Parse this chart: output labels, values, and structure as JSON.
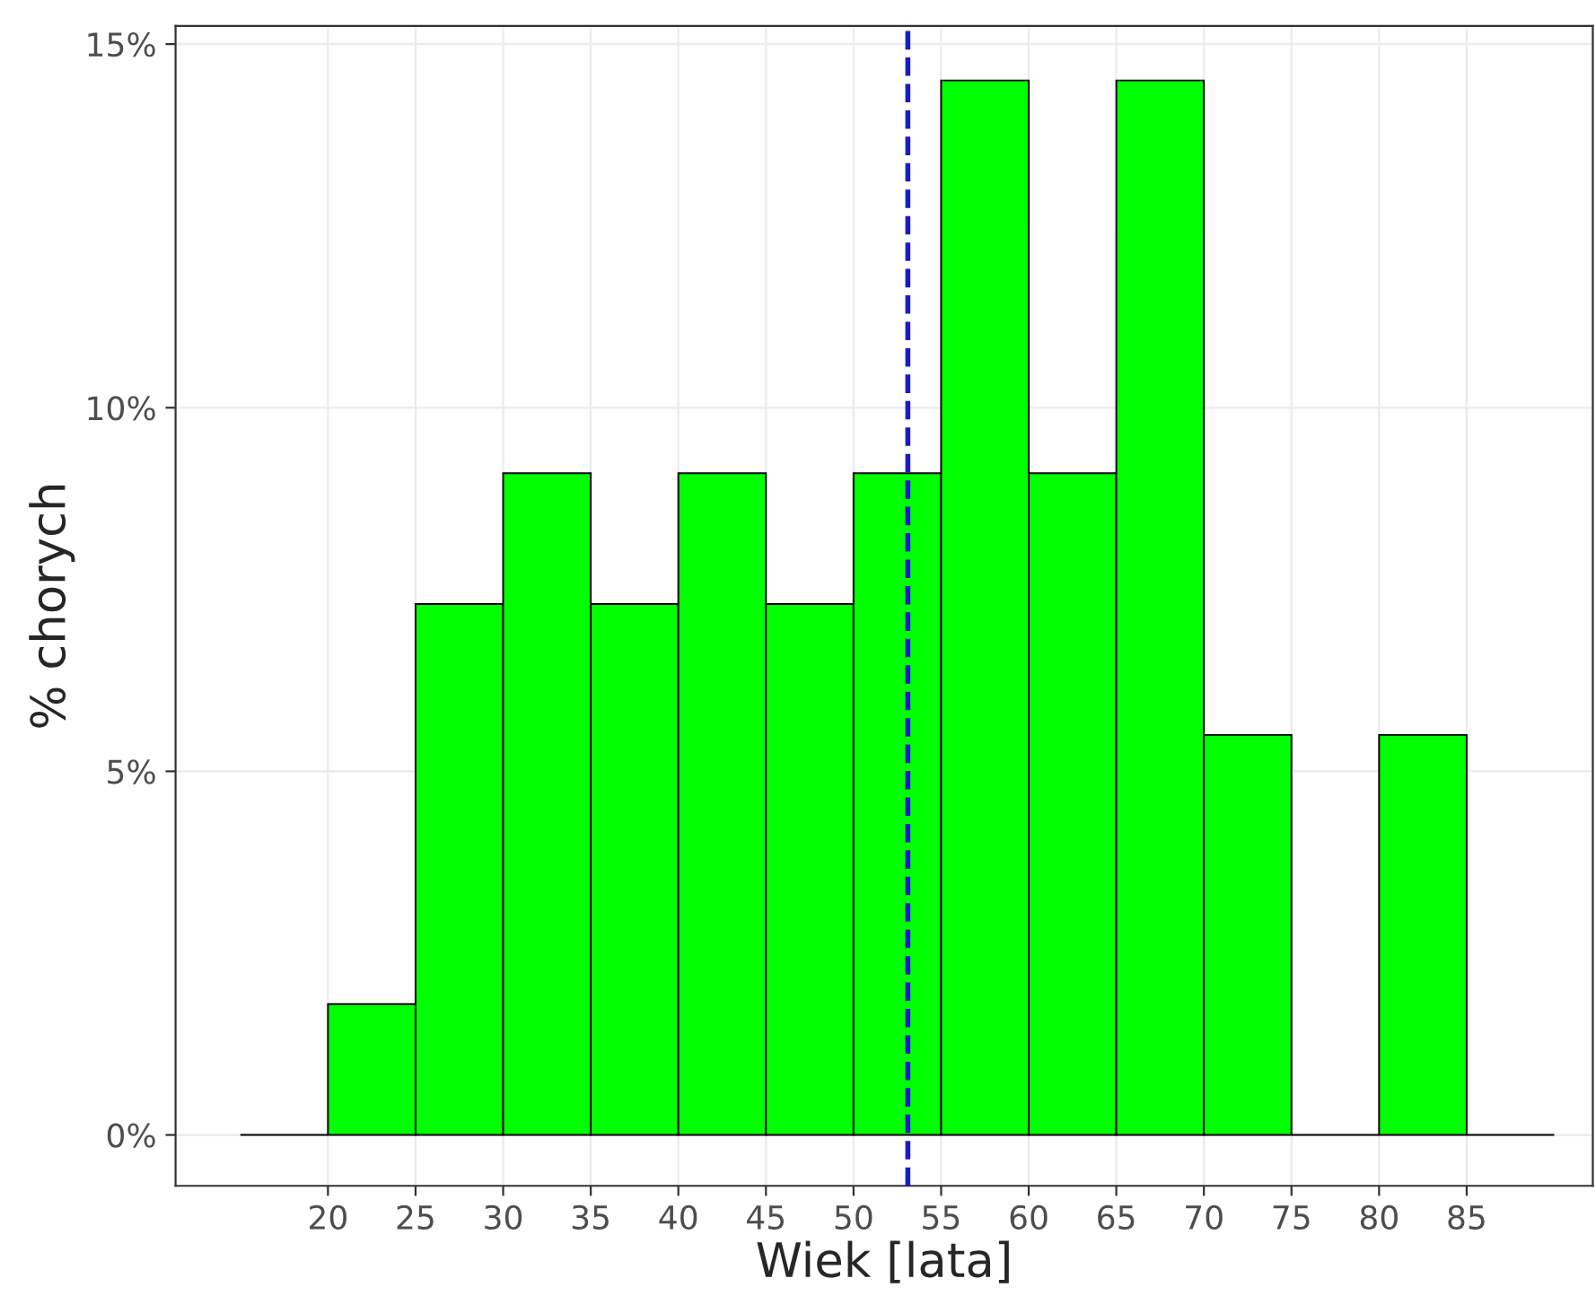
{
  "chart_data": {
    "type": "histogram",
    "xlabel": "Wiek [lata]",
    "ylabel": "% chorych",
    "bins": [
      15,
      20,
      25,
      30,
      35,
      40,
      45,
      50,
      55,
      60,
      65,
      70,
      75,
      80,
      85,
      90
    ],
    "values": [
      0,
      1.8,
      7.3,
      9.1,
      7.3,
      9.1,
      7.3,
      9.1,
      14.5,
      9.1,
      14.5,
      5.5,
      0,
      5.5,
      0
    ],
    "colors": [
      "#000000",
      "#00ff00",
      "#00ff00",
      "#00ff00",
      "#00ff00",
      "#00ff00",
      "#00ff00",
      "#00ff00",
      "#00ff00",
      "#00ff00",
      "#00ff00",
      "#00ff00",
      "#000000",
      "#00ff00",
      "#000000"
    ],
    "xlim": [
      11.3,
      92.2
    ],
    "xticks": [
      20,
      25,
      30,
      35,
      40,
      45,
      50,
      55,
      60,
      65,
      70,
      75,
      80,
      85
    ],
    "ylim": [
      -0.7,
      15.25
    ],
    "yticks": [
      {
        "value": 0,
        "label": "0%"
      },
      {
        "value": 5,
        "label": "5%"
      },
      {
        "value": 10,
        "label": "10%"
      },
      {
        "value": 15,
        "label": "15%"
      }
    ],
    "ref_lines": [
      {
        "axis": "x",
        "value": 53.1,
        "color": "#1a1ac8",
        "line_style": "dashed"
      }
    ],
    "grid": true
  }
}
